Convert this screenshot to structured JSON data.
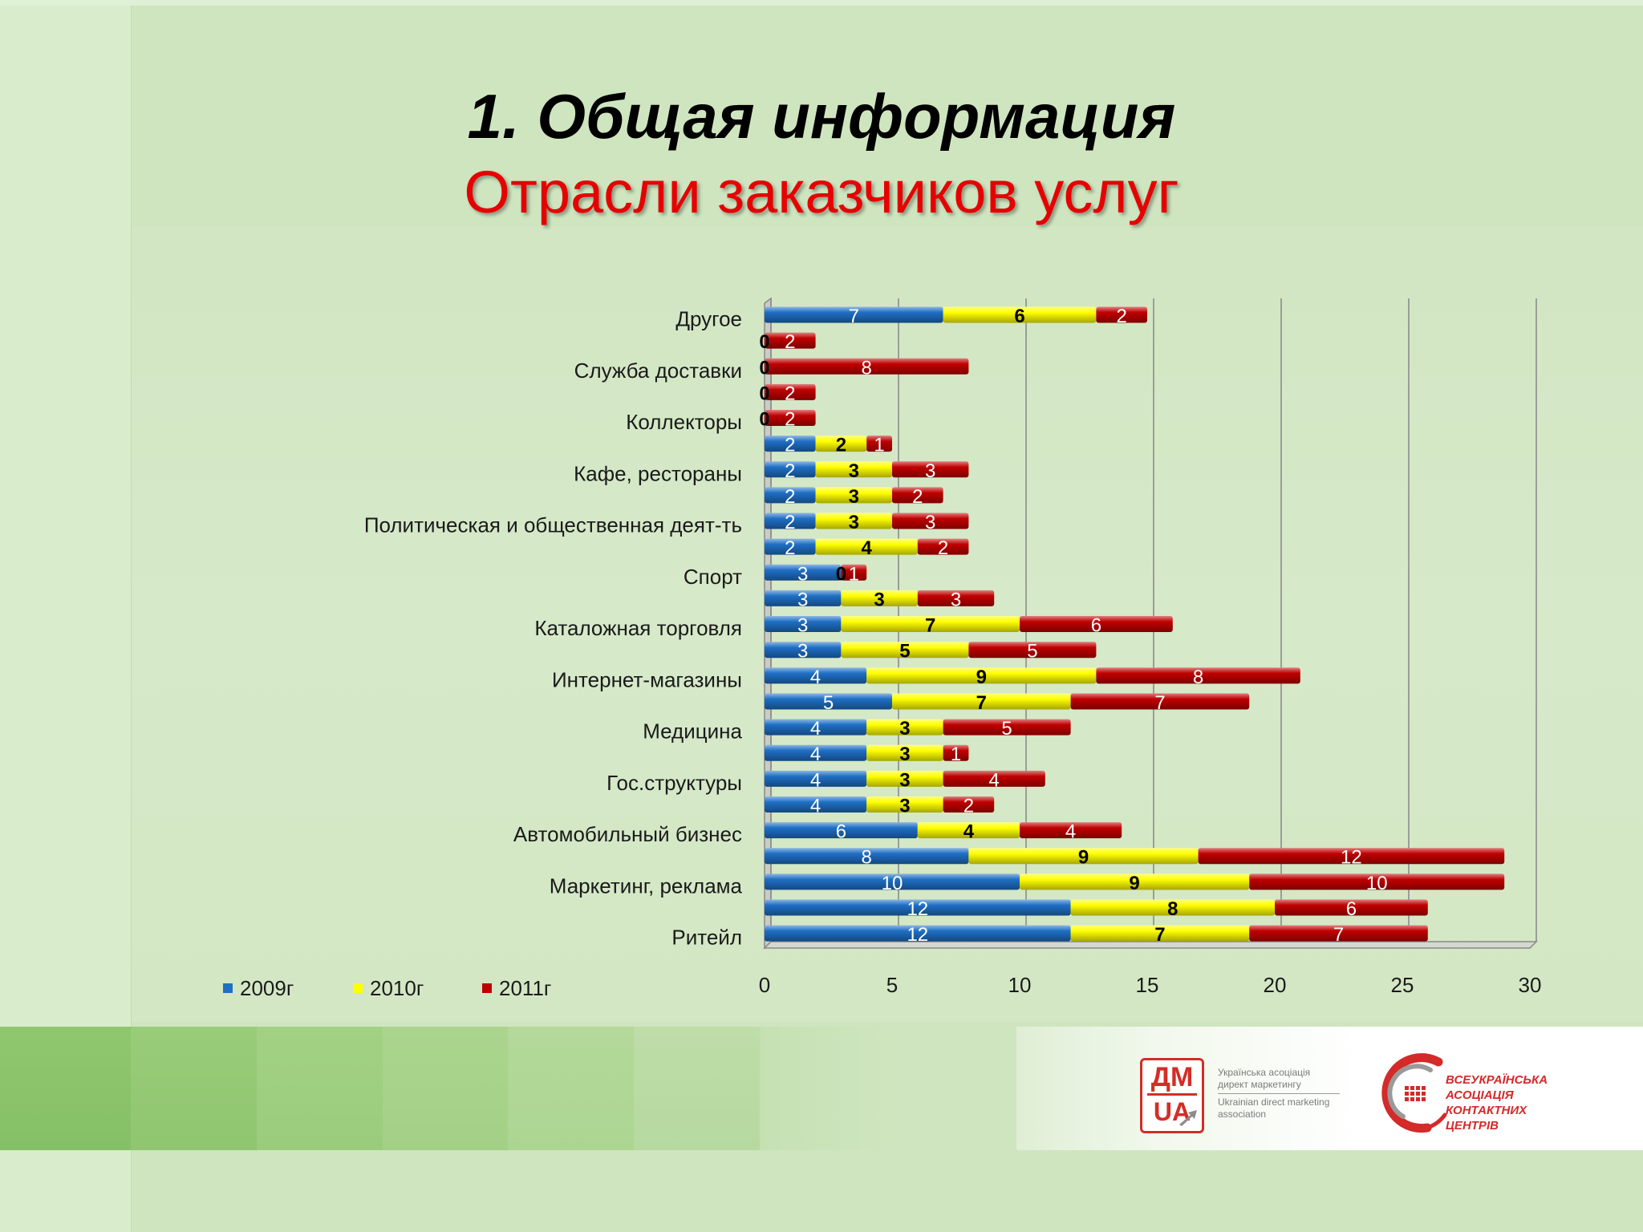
{
  "slide": {
    "title": "1. Общая информация",
    "subtitle": "Отрасли заказчиков услуг"
  },
  "chart_data": {
    "type": "bar",
    "orientation": "horizontal",
    "stacked": true,
    "categories": [
      "Другое",
      "",
      "Служба доставки",
      "",
      "Коллекторы",
      "",
      "Кафе, рестораны",
      "",
      "Политическая и общественная деят-ть",
      "",
      "Спорт",
      "",
      "Каталожная торговля",
      "",
      "Интернет-магазины",
      "",
      "Медицина",
      "",
      "Гос.структуры",
      "",
      "Автомобильный бизнес",
      "",
      "Маркетинг, реклама",
      "",
      "Ритейл"
    ],
    "series": [
      {
        "name": "2009г",
        "color": "#1f6fc5",
        "label_color": "#ffffff",
        "values": [
          7,
          0,
          0,
          0,
          0,
          2,
          2,
          2,
          2,
          2,
          3,
          3,
          3,
          3,
          4,
          5,
          4,
          4,
          4,
          4,
          6,
          8,
          10,
          12,
          12
        ]
      },
      {
        "name": "2010г",
        "color": "#ffff00",
        "label_color": "#000000",
        "values": [
          6,
          0,
          0,
          0,
          0,
          2,
          3,
          3,
          3,
          4,
          0,
          3,
          7,
          5,
          9,
          7,
          3,
          3,
          3,
          3,
          4,
          9,
          9,
          8,
          7
        ]
      },
      {
        "name": "2011г",
        "color": "#c00000",
        "label_color": "#ffffff",
        "values": [
          2,
          2,
          8,
          2,
          2,
          1,
          3,
          2,
          3,
          2,
          1,
          3,
          6,
          5,
          8,
          7,
          5,
          1,
          4,
          2,
          4,
          12,
          10,
          6,
          7
        ]
      }
    ],
    "xlim": [
      0,
      30
    ],
    "xticks": [
      0,
      5,
      10,
      15,
      20,
      25,
      30
    ],
    "grid": true,
    "legend": "bottom-left"
  },
  "footer": {
    "dmua": {
      "mark_top": "ДМ",
      "mark_bottom": "UA",
      "lines": [
        "Українська асоціація",
        "директ маркетингу",
        "Ukrainian direct marketing",
        "association"
      ]
    },
    "vakc": {
      "lines": [
        "ВСЕУКРАЇНСЬКА",
        "АСОЦІАЦІЯ",
        "КОНТАКТНИХ",
        "ЦЕНТРІВ"
      ]
    }
  }
}
